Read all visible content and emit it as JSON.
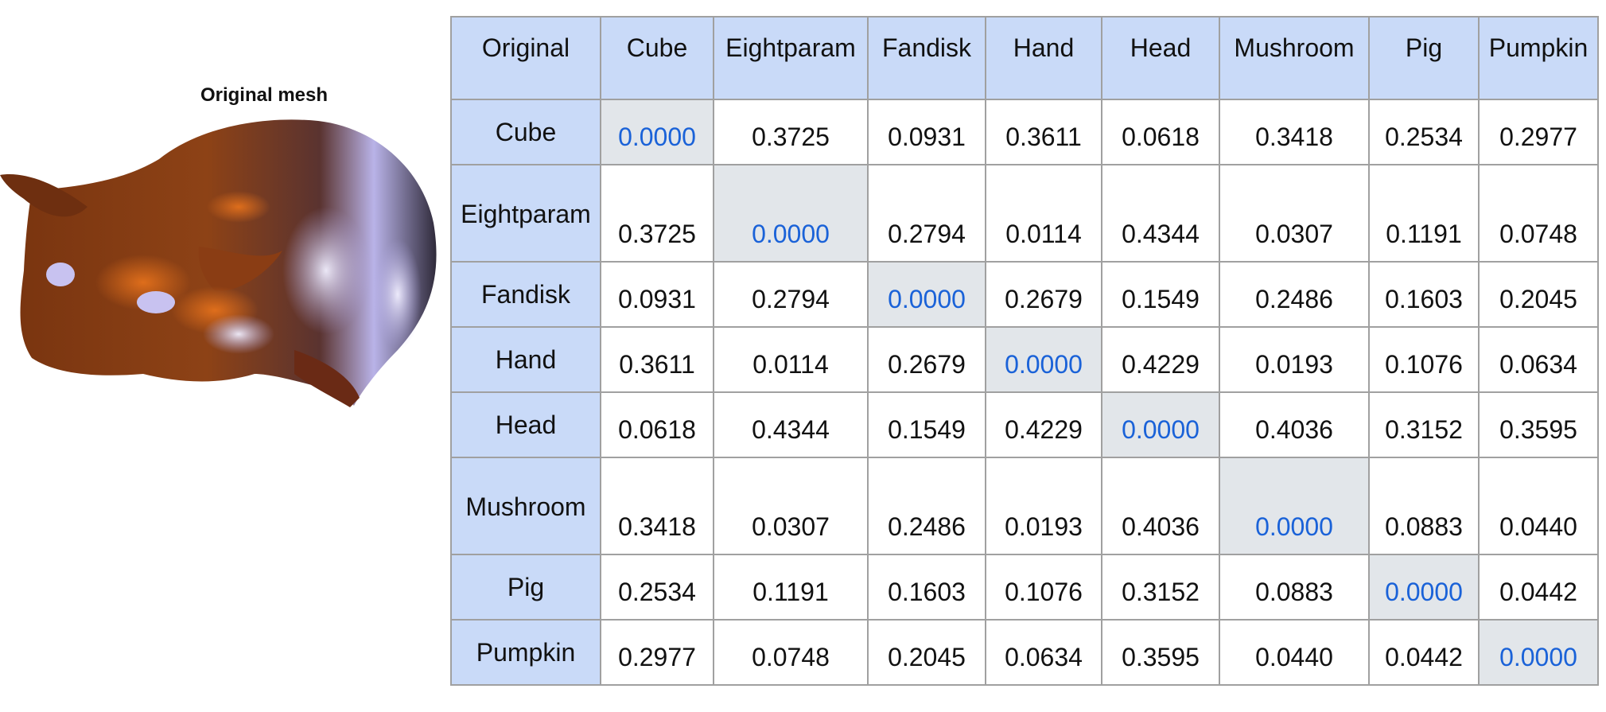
{
  "mesh_panel": {
    "title": "Original mesh",
    "colors": {
      "body": "#8a3d12",
      "highlight": "#d9641a",
      "sheen": "#c9c4f2",
      "dark": "#3a2a2a"
    }
  },
  "table": {
    "corner": "Original",
    "columns": [
      "Cube",
      "Eightparam",
      "Fandisk",
      "Hand",
      "Head",
      "Mushroom",
      "Pig",
      "Pumpkin"
    ],
    "rows": [
      {
        "label": "Cube",
        "values": [
          "0.0000",
          "0.3725",
          "0.0931",
          "0.3611",
          "0.0618",
          "0.3418",
          "0.2534",
          "0.2977"
        ]
      },
      {
        "label": "Eightparam",
        "values": [
          "0.3725",
          "0.0000",
          "0.2794",
          "0.0114",
          "0.4344",
          "0.0307",
          "0.1191",
          "0.0748"
        ]
      },
      {
        "label": "Fandisk",
        "values": [
          "0.0931",
          "0.2794",
          "0.0000",
          "0.2679",
          "0.1549",
          "0.2486",
          "0.1603",
          "0.2045"
        ]
      },
      {
        "label": "Hand",
        "values": [
          "0.3611",
          "0.0114",
          "0.2679",
          "0.0000",
          "0.4229",
          "0.0193",
          "0.1076",
          "0.0634"
        ]
      },
      {
        "label": "Head",
        "values": [
          "0.0618",
          "0.4344",
          "0.1549",
          "0.4229",
          "0.0000",
          "0.4036",
          "0.3152",
          "0.3595"
        ]
      },
      {
        "label": "Mushroom",
        "values": [
          "0.3418",
          "0.0307",
          "0.2486",
          "0.0193",
          "0.4036",
          "0.0000",
          "0.0883",
          "0.0440"
        ]
      },
      {
        "label": "Pig",
        "values": [
          "0.2534",
          "0.1191",
          "0.1603",
          "0.1076",
          "0.3152",
          "0.0883",
          "0.0000",
          "0.0442"
        ]
      },
      {
        "label": "Pumpkin",
        "values": [
          "0.2977",
          "0.0748",
          "0.2045",
          "0.0634",
          "0.3595",
          "0.0440",
          "0.0442",
          "0.0000"
        ]
      }
    ],
    "colors": {
      "header_bg": "#c9daf8",
      "diagonal_bg": "#e2e6ea",
      "diagonal_text": "#1a62d8",
      "border": "#a0a0a0"
    }
  }
}
